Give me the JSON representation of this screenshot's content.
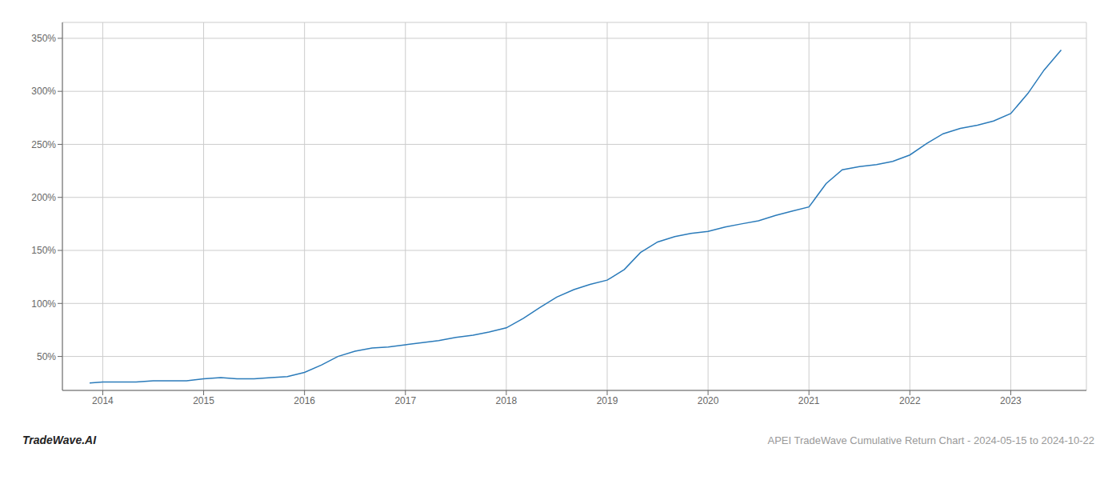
{
  "chart_data": {
    "type": "line",
    "title": "APEI TradeWave Cumulative Return Chart - 2024-05-15 to 2024-10-22",
    "annotations": [
      "TradeWave.AI"
    ],
    "color": "#2b7bba",
    "grid": true,
    "x": [
      2013.87,
      2014.0,
      2014.17,
      2014.33,
      2014.5,
      2014.67,
      2014.83,
      2015.0,
      2015.17,
      2015.33,
      2015.5,
      2015.67,
      2015.83,
      2016.0,
      2016.17,
      2016.33,
      2016.5,
      2016.67,
      2016.83,
      2017.0,
      2017.17,
      2017.33,
      2017.5,
      2017.67,
      2017.83,
      2018.0,
      2018.17,
      2018.33,
      2018.5,
      2018.67,
      2018.83,
      2019.0,
      2019.17,
      2019.33,
      2019.5,
      2019.67,
      2019.83,
      2020.0,
      2020.17,
      2020.33,
      2020.5,
      2020.67,
      2020.83,
      2021.0,
      2021.17,
      2021.33,
      2021.5,
      2021.67,
      2021.83,
      2022.0,
      2022.17,
      2022.33,
      2022.5,
      2022.67,
      2022.83,
      2023.0,
      2023.17,
      2023.33,
      2023.5
    ],
    "values": [
      25,
      26,
      26,
      26,
      27,
      27,
      27,
      29,
      30,
      29,
      29,
      30,
      31,
      35,
      42,
      50,
      55,
      58,
      59,
      61,
      63,
      65,
      68,
      70,
      73,
      77,
      86,
      96,
      106,
      113,
      118,
      122,
      132,
      148,
      158,
      163,
      166,
      168,
      172,
      175,
      178,
      183,
      187,
      191,
      213,
      226,
      229,
      231,
      234,
      240,
      251,
      260,
      265,
      268,
      272,
      279,
      298,
      320,
      339
    ],
    "xlim": [
      2013.6,
      2023.75
    ],
    "xticks": [
      2014,
      2015,
      2016,
      2017,
      2018,
      2019,
      2020,
      2021,
      2022,
      2023
    ],
    "ylim": [
      18,
      365
    ],
    "yticks": [
      {
        "value": 50,
        "label": "50%"
      },
      {
        "value": 100,
        "label": "100%"
      },
      {
        "value": 150,
        "label": "150%"
      },
      {
        "value": 200,
        "label": "200%"
      },
      {
        "value": 250,
        "label": "250%"
      },
      {
        "value": 300,
        "label": "300%"
      },
      {
        "value": 350,
        "label": "350%"
      }
    ]
  }
}
